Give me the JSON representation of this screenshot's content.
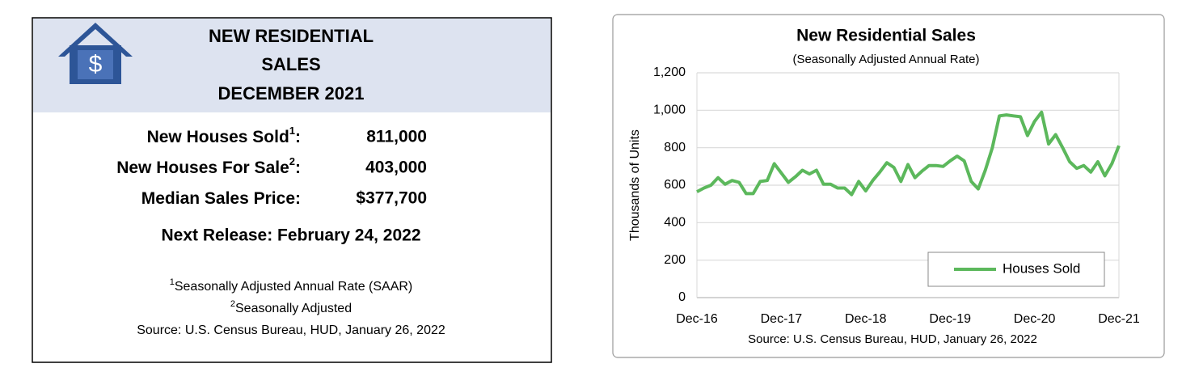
{
  "panel": {
    "icon_symbol": "$",
    "title_lines": [
      "NEW RESIDENTIAL",
      "SALES",
      "DECEMBER 2021"
    ],
    "rows": [
      {
        "label": "New Houses Sold",
        "note": "1",
        "after": ":",
        "value": "811,000"
      },
      {
        "label": "New Houses For Sale",
        "note": "2",
        "after": ":",
        "value": "403,000"
      },
      {
        "label": "Median Sales Price",
        "after": ":",
        "value": "$377,700"
      }
    ],
    "next_release": "Next Release:  February 24, 2022",
    "footnotes": [
      {
        "mark": "1",
        "text": "Seasonally Adjusted Annual Rate (SAAR)"
      },
      {
        "mark": "2",
        "text": "Seasonally Adjusted"
      }
    ],
    "source": "Source:  U.S. Census Bureau, HUD, January 26, 2022"
  },
  "chart_data": {
    "type": "line",
    "title": "New Residential Sales",
    "subtitle": "(Seasonally Adjusted Annual Rate)",
    "y_label": "Thousands of Units",
    "source": "Source:  U.S. Census Bureau, HUD, January 26, 2022",
    "categories": [
      "Dec-16",
      null,
      null,
      null,
      null,
      null,
      null,
      null,
      null,
      null,
      null,
      null,
      "Dec-17",
      null,
      null,
      null,
      null,
      null,
      null,
      null,
      null,
      null,
      null,
      null,
      "Dec-18",
      null,
      null,
      null,
      null,
      null,
      null,
      null,
      null,
      null,
      null,
      null,
      "Dec-19",
      null,
      null,
      null,
      null,
      null,
      null,
      null,
      null,
      null,
      null,
      null,
      "Dec-20",
      null,
      null,
      null,
      null,
      null,
      null,
      null,
      null,
      null,
      null,
      null,
      "Dec-21"
    ],
    "series": [
      {
        "name": "Houses Sold",
        "color": "#5cb85c",
        "values": [
          565,
          585,
          600,
          640,
          605,
          625,
          615,
          555,
          555,
          620,
          625,
          715,
          665,
          615,
          645,
          680,
          660,
          680,
          605,
          605,
          585,
          585,
          550,
          620,
          570,
          625,
          670,
          720,
          695,
          620,
          710,
          640,
          675,
          705,
          705,
          700,
          730,
          755,
          730,
          620,
          580,
          680,
          800,
          970,
          975,
          970,
          965,
          865,
          940,
          990,
          820,
          870,
          800,
          725,
          690,
          705,
          670,
          725,
          650,
          715,
          811
        ]
      }
    ],
    "ylim": [
      0,
      1200
    ],
    "yticks": [
      0,
      200,
      400,
      600,
      800,
      {
        "value": 1000,
        "label": "1,000"
      },
      {
        "value": 1200,
        "label": "1,200"
      }
    ],
    "grid": true,
    "legend": "lower right"
  }
}
